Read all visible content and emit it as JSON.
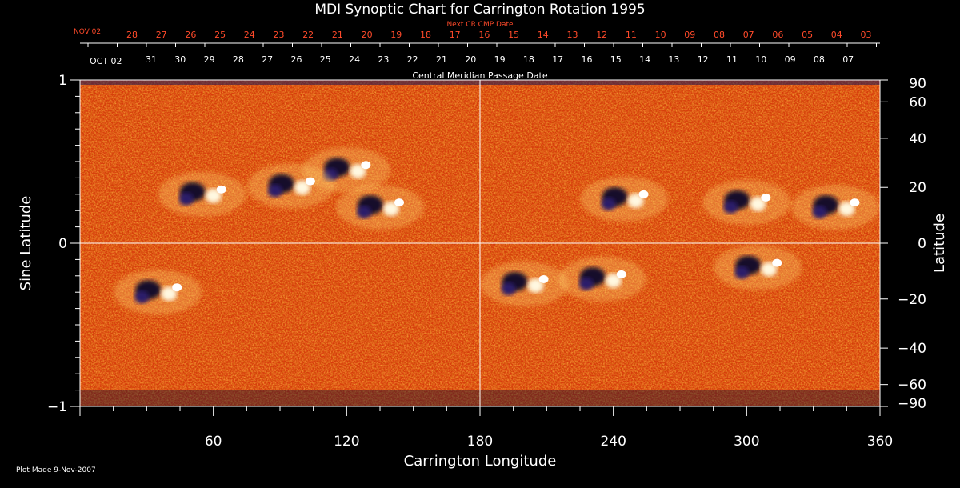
{
  "chart_data": {
    "type": "heatmap",
    "title": "MDI Synoptic Chart for Carrington Rotation 1995",
    "xlabel": "Carrington Longitude",
    "ylabel_left": "Sine Latitude",
    "ylabel_right": "Latitude",
    "xlim": [
      0,
      360
    ],
    "ylim": [
      -1,
      1
    ],
    "x_ticks": [
      60,
      120,
      180,
      240,
      300,
      360
    ],
    "y_ticks_left": [
      {
        "value": 1,
        "label": "1"
      },
      {
        "value": 0,
        "label": "0"
      },
      {
        "value": -1,
        "label": "−1"
      }
    ],
    "y_ticks_right": [
      90,
      60,
      40,
      20,
      0,
      -20,
      -40,
      -60,
      -90
    ],
    "top_axis_title": "Central Meridian Passage Date",
    "top_axis_red_title": "Next CR CMP Date",
    "top_axis_month_white": "OCT 02",
    "top_axis_month_red": "NOV 02",
    "top_axis_dates_white": [
      "31",
      "30",
      "29",
      "28",
      "27",
      "26",
      "25",
      "24",
      "23",
      "22",
      "21",
      "20",
      "19",
      "18",
      "17",
      "16",
      "15",
      "14",
      "13",
      "12",
      "11",
      "10",
      "09",
      "08",
      "07"
    ],
    "top_axis_dates_red": [
      "28",
      "27",
      "26",
      "25",
      "24",
      "23",
      "22",
      "21",
      "20",
      "19",
      "18",
      "17",
      "16",
      "15",
      "14",
      "13",
      "12",
      "11",
      "10",
      "09",
      "08",
      "07",
      "06",
      "05",
      "04",
      "03"
    ],
    "active_regions": [
      {
        "lon": 120,
        "sinlat": 0.45,
        "polarity": "mixed"
      },
      {
        "lon": 95,
        "sinlat": 0.35,
        "polarity": "mixed"
      },
      {
        "lon": 135,
        "sinlat": 0.22,
        "polarity": "mixed"
      },
      {
        "lon": 55,
        "sinlat": 0.3,
        "polarity": "mixed"
      },
      {
        "lon": 245,
        "sinlat": 0.27,
        "polarity": "mixed"
      },
      {
        "lon": 340,
        "sinlat": 0.22,
        "polarity": "mixed"
      },
      {
        "lon": 300,
        "sinlat": 0.25,
        "polarity": "mixed"
      },
      {
        "lon": 35,
        "sinlat": -0.3,
        "polarity": "mixed"
      },
      {
        "lon": 200,
        "sinlat": -0.25,
        "polarity": "mixed"
      },
      {
        "lon": 235,
        "sinlat": -0.22,
        "polarity": "mixed"
      },
      {
        "lon": 305,
        "sinlat": -0.15,
        "polarity": "mixed"
      }
    ],
    "grid": "center lines only"
  },
  "footer": {
    "plot_made": "Plot Made  9-Nov-2007"
  }
}
